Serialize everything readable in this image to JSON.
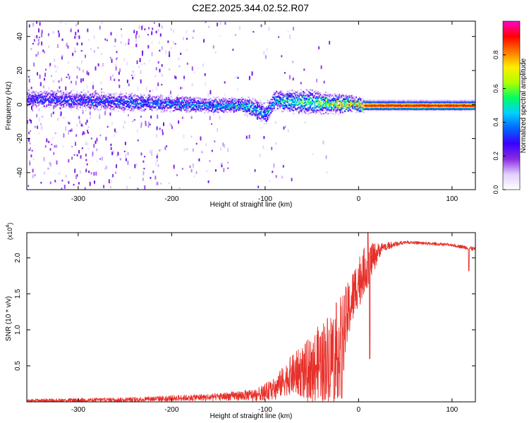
{
  "figure_title": "C2E2.2025.344.02.52.R07",
  "chart_data": [
    {
      "type": "heatmap",
      "name": "spectrogram",
      "xlabel": "Height of straight line (km)",
      "ylabel": "Frequency (Hz)",
      "xlim": [
        -355,
        125
      ],
      "ylim": [
        -50,
        49
      ],
      "xticks": [
        -300,
        -200,
        -100,
        0,
        100
      ],
      "yticks": [
        -40,
        -20,
        0,
        20,
        40
      ],
      "colorbar": {
        "label": "Normalized spectral amplitude",
        "range": [
          0,
          1
        ],
        "ticks": [
          0.0,
          0.2,
          0.4,
          0.6,
          0.8
        ],
        "colors": [
          "#ffffff",
          "#e0d0ff",
          "#8a2be2",
          "#3a00ff",
          "#0066ff",
          "#00d0ff",
          "#00ff60",
          "#b0ff00",
          "#ffee00",
          "#ff7700",
          "#ff0000",
          "#ff00cc"
        ]
      },
      "band": [
        {
          "x": -355,
          "center": 4,
          "width": 4,
          "amp": 0.35
        },
        {
          "x": -300,
          "center": 3,
          "width": 4,
          "amp": 0.38
        },
        {
          "x": -250,
          "center": 2,
          "width": 4,
          "amp": 0.4
        },
        {
          "x": -200,
          "center": 1,
          "width": 3,
          "amp": 0.45
        },
        {
          "x": -150,
          "center": 0,
          "width": 3,
          "amp": 0.5
        },
        {
          "x": -120,
          "center": 0,
          "width": 3,
          "amp": 0.55
        },
        {
          "x": -100,
          "center": -5,
          "width": 5,
          "amp": 0.45
        },
        {
          "x": -90,
          "center": 3,
          "width": 4,
          "amp": 0.5
        },
        {
          "x": -70,
          "center": 2,
          "width": 5,
          "amp": 0.6
        },
        {
          "x": -50,
          "center": 2,
          "width": 5,
          "amp": 0.65
        },
        {
          "x": -30,
          "center": 1,
          "width": 4,
          "amp": 0.75
        },
        {
          "x": -10,
          "center": 1,
          "width": 3,
          "amp": 0.85
        },
        {
          "x": 5,
          "center": 0,
          "width": 2,
          "amp": 0.95
        },
        {
          "x": 125,
          "center": 0,
          "width": 2,
          "amp": 0.95
        }
      ]
    },
    {
      "type": "line",
      "name": "snr",
      "xlabel": "Height of straight line (km)",
      "ylabel": "SNR (10 * v/v)",
      "y_multiplier": "(x10",
      "y_multiplier_exp": "4",
      "y_multiplier_close": ")",
      "xlim": [
        -355,
        125
      ],
      "ylim": [
        0,
        2.35
      ],
      "xticks": [
        -300,
        -200,
        -100,
        0,
        100
      ],
      "yticks": [
        0.5,
        1.0,
        1.5,
        2.0
      ],
      "color": "#e8302a",
      "envelope": [
        {
          "x": -355,
          "base": 0.02,
          "noise": 0.02
        },
        {
          "x": -250,
          "base": 0.03,
          "noise": 0.03
        },
        {
          "x": -200,
          "base": 0.05,
          "noise": 0.04
        },
        {
          "x": -150,
          "base": 0.07,
          "noise": 0.05
        },
        {
          "x": -110,
          "base": 0.1,
          "noise": 0.08
        },
        {
          "x": -90,
          "base": 0.18,
          "noise": 0.15
        },
        {
          "x": -75,
          "base": 0.35,
          "noise": 0.25
        },
        {
          "x": -55,
          "base": 0.45,
          "noise": 0.4
        },
        {
          "x": -35,
          "base": 0.6,
          "noise": 0.6
        },
        {
          "x": -20,
          "base": 0.75,
          "noise": 0.7
        },
        {
          "x": -10,
          "base": 1.3,
          "noise": 0.4
        },
        {
          "x": 0,
          "base": 1.7,
          "noise": 0.35
        },
        {
          "x": 10,
          "base": 1.9,
          "noise": 0.3
        },
        {
          "x": 25,
          "base": 2.15,
          "noise": 0.06
        },
        {
          "x": 50,
          "base": 2.22,
          "noise": 0.02
        },
        {
          "x": 100,
          "base": 2.18,
          "noise": 0.02
        },
        {
          "x": 125,
          "base": 2.12,
          "noise": 0.03
        }
      ],
      "features": [
        {
          "x": -18,
          "value": 0.05
        },
        {
          "x": 10,
          "value": 2.35
        },
        {
          "x": 12,
          "value": 0.6
        },
        {
          "x": 118,
          "value": 1.82
        }
      ]
    }
  ]
}
